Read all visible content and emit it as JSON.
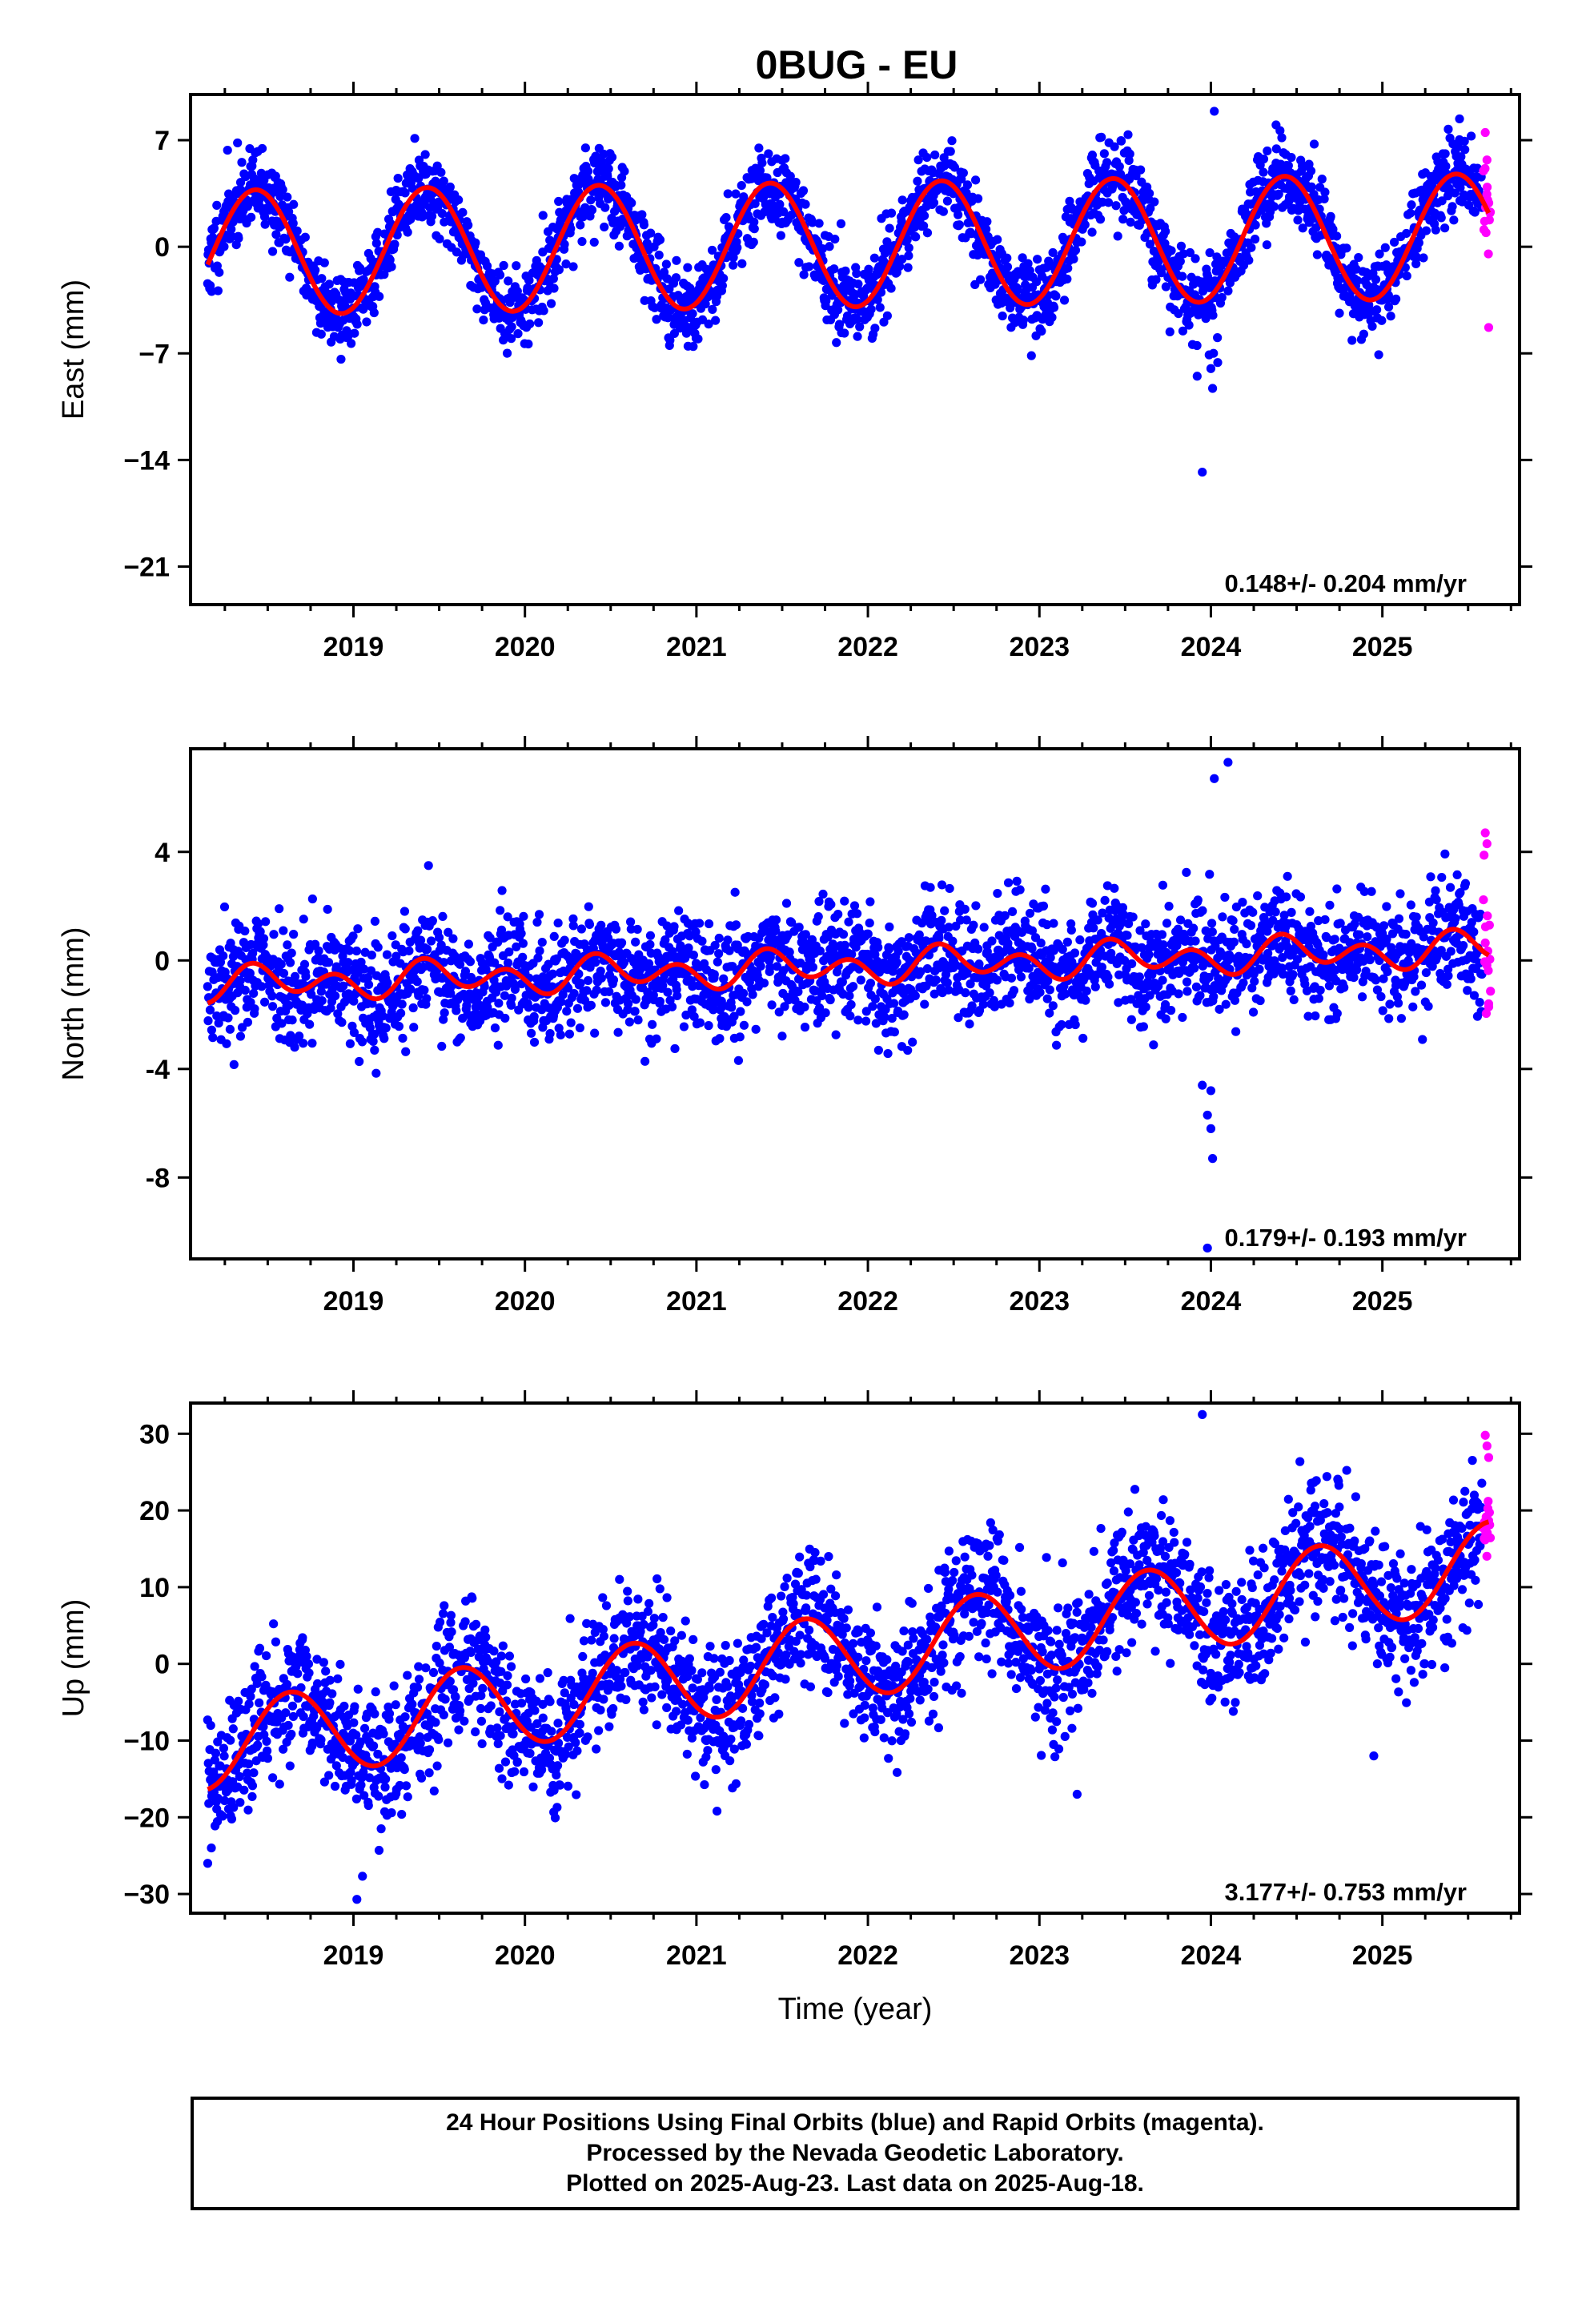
{
  "chart_data": [
    {
      "type": "scatter",
      "title": "0BUG - EU",
      "ylabel": "East (mm)",
      "xlabel": "",
      "ylim": [
        -23.5,
        10
      ],
      "xlim": [
        2018.05,
        2025.8
      ],
      "yticks": [
        7,
        0,
        -7,
        -14,
        -21
      ],
      "ytick_labels": [
        "7",
        "0",
        "−7",
        "−14",
        "−21"
      ],
      "xticks": [
        2019,
        2020,
        2021,
        2022,
        2023,
        2024,
        2025
      ],
      "xtick_labels": [
        "2019",
        "2020",
        "2021",
        "2022",
        "2023",
        "2024",
        "2025"
      ],
      "rate_label": "0.148+/- 0.204 mm/yr",
      "model": {
        "start": 2018.15,
        "end": 2025.62,
        "offset": -0.4,
        "trend": 0.148,
        "annual_amp": 4.1,
        "annual_peak": 2018.43,
        "semiannual_amp": 0.0,
        "semiannual_peak": 2018.2
      },
      "series": [
        {
          "color": "#0000ff",
          "start": 2018.15,
          "end": 2025.58,
          "count": 2550,
          "scatter_sd": 1.3,
          "seed": 11,
          "outliers": [
            [
              2023.95,
              -14.8
            ],
            [
              2024.01,
              -9.3
            ],
            [
              2024.0,
              -8.0
            ],
            [
              2023.99,
              -7.1
            ],
            [
              2024.02,
              8.9
            ],
            [
              2024.38,
              8.0
            ],
            [
              2025.45,
              8.4
            ],
            [
              2023.92,
              -8.5
            ],
            [
              2024.04,
              -7.6
            ]
          ]
        },
        {
          "color": "#ff00ff",
          "start": 2025.59,
          "end": 2025.63,
          "count": 14,
          "scatter_sd": 1.5,
          "seed": 12,
          "outliers": [
            [
              2025.6,
              7.5
            ],
            [
              2025.61,
              5.7
            ],
            [
              2025.62,
              -5.3
            ]
          ]
        }
      ]
    },
    {
      "type": "scatter",
      "title": "",
      "ylabel": "North (mm)",
      "xlabel": "",
      "ylim": [
        -11,
        7.8
      ],
      "xlim": [
        2018.05,
        2025.8
      ],
      "yticks": [
        4,
        0,
        -4,
        -8
      ],
      "ytick_labels": [
        "4",
        "0",
        "-4",
        "-8"
      ],
      "xticks": [
        2019,
        2020,
        2021,
        2022,
        2023,
        2024,
        2025
      ],
      "xtick_labels": [
        "2019",
        "2020",
        "2021",
        "2022",
        "2023",
        "2024",
        "2025"
      ],
      "rate_label": "0.179+/- 0.193 mm/yr",
      "model": {
        "start": 2018.15,
        "end": 2025.62,
        "offset": -0.9,
        "trend": 0.179,
        "annual_amp": 0.3,
        "annual_peak": 2018.5,
        "semiannual_amp": 0.5,
        "semiannual_peak": 2018.4
      },
      "series": [
        {
          "color": "#0000ff",
          "start": 2018.15,
          "end": 2025.58,
          "count": 2550,
          "scatter_sd": 1.05,
          "seed": 21,
          "outliers": [
            [
              2024.02,
              6.7
            ],
            [
              2024.1,
              7.3
            ],
            [
              2023.95,
              -4.6
            ],
            [
              2023.98,
              -5.7
            ],
            [
              2024.0,
              -6.2
            ],
            [
              2024.01,
              -7.3
            ],
            [
              2023.98,
              -10.6
            ],
            [
              2024.0,
              -4.8
            ]
          ]
        },
        {
          "color": "#ff00ff",
          "start": 2025.59,
          "end": 2025.63,
          "count": 14,
          "scatter_sd": 1.6,
          "seed": 22,
          "outliers": [
            [
              2025.6,
              4.7
            ],
            [
              2025.61,
              4.3
            ],
            [
              2025.62,
              -1.6
            ]
          ]
        }
      ]
    },
    {
      "type": "scatter",
      "title": "",
      "ylabel": "Up (mm)",
      "xlabel": "Time (year)",
      "ylim": [
        -32.5,
        34
      ],
      "xlim": [
        2018.05,
        2025.8
      ],
      "yticks": [
        30,
        20,
        10,
        0,
        -10,
        -20,
        -30
      ],
      "ytick_labels": [
        "30",
        "20",
        "10",
        "0",
        "−10",
        "−20",
        "−30"
      ],
      "xticks": [
        2019,
        2020,
        2021,
        2022,
        2023,
        2024,
        2025
      ],
      "xtick_labels": [
        "2019",
        "2020",
        "2021",
        "2022",
        "2023",
        "2024",
        "2025"
      ],
      "rate_label": "3.177+/- 0.753 mm/yr",
      "model": {
        "start": 2018.15,
        "end": 2025.62,
        "offset": -10.8,
        "trend": 3.177,
        "annual_amp": 5.6,
        "annual_peak": 2018.63,
        "semiannual_amp": 0.0,
        "semiannual_peak": 2018.2
      },
      "series": [
        {
          "color": "#0000ff",
          "start": 2018.15,
          "end": 2025.58,
          "count": 2550,
          "scatter_sd": 4.3,
          "seed": 31,
          "outliers": [
            [
              2023.95,
              32.5
            ],
            [
              2019.02,
              -30.7
            ],
            [
              2018.15,
              -26.0
            ],
            [
              2023.22,
              -17.0
            ],
            [
              2021.12,
              -19.2
            ],
            [
              2024.95,
              -12.0
            ]
          ]
        },
        {
          "color": "#ff00ff",
          "start": 2025.59,
          "end": 2025.63,
          "count": 14,
          "scatter_sd": 2.5,
          "seed": 32,
          "outliers": [
            [
              2025.6,
              29.8
            ],
            [
              2025.61,
              28.4
            ],
            [
              2025.62,
              26.9
            ]
          ]
        }
      ]
    }
  ],
  "footer": {
    "line1": "24 Hour Positions Using Final Orbits (blue) and Rapid Orbits (magenta).",
    "line2": "Processed by the Nevada Geodetic Laboratory.",
    "line3": "Plotted on 2025-Aug-23. Last data on 2025-Aug-18."
  },
  "colors": {
    "final_orbits": "#0000ff",
    "rapid_orbits": "#ff00ff",
    "model_line": "#ff0000"
  }
}
